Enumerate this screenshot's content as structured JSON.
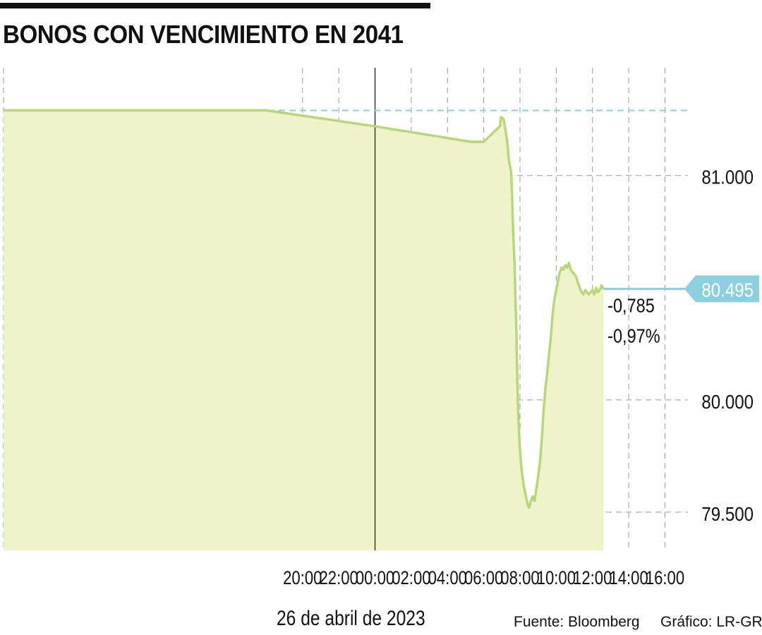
{
  "header": {
    "title": "BONOS CON VENCIMIENTO EN 2041"
  },
  "footer": {
    "date": "26 de abril de 2023",
    "source": "Fuente: Bloomberg",
    "credit": "Gráfico: LR-GR"
  },
  "colors": {
    "line": "#b9d67a",
    "fill": "#eef3c9",
    "reference": "#8ccfe0",
    "last_value_tag": "#8ccfe0",
    "grid": "#9a9a9a",
    "text": "#111111"
  },
  "chart_data": {
    "type": "area",
    "title": "BONOS CON VENCIMIENTO EN 2041",
    "xlabel": "26 de abril de 2023",
    "ylabel": "",
    "x_unit": "hours relative to 00:00 on 26 April 2023 (negative = previous evening)",
    "xlim": [
      -20.5,
      17.5
    ],
    "ylim": [
      79.33,
      81.48
    ],
    "grid": true,
    "x_ticks": [
      {
        "value": -4,
        "label": "20:00"
      },
      {
        "value": -2,
        "label": "22:00"
      },
      {
        "value": 0,
        "label": "00:00"
      },
      {
        "value": 2,
        "label": "02:00"
      },
      {
        "value": 4,
        "label": "04:00"
      },
      {
        "value": 6,
        "label": "06:00"
      },
      {
        "value": 8,
        "label": "08:00"
      },
      {
        "value": 10,
        "label": "10:00"
      },
      {
        "value": 12,
        "label": "12:00"
      },
      {
        "value": 14,
        "label": "14:00"
      },
      {
        "value": 16,
        "label": "16:00"
      }
    ],
    "y_ticks": [
      {
        "value": 81.0,
        "label": "81.000"
      },
      {
        "value": 80.0,
        "label": "80.000"
      },
      {
        "value": 79.5,
        "label": "79.500"
      }
    ],
    "reference_line": {
      "value": 81.29
    },
    "day_divider": {
      "x": 0
    },
    "last_value": {
      "value": 80.495,
      "label": "80.495"
    },
    "annotations": [
      {
        "text": "-0,785"
      },
      {
        "text": "-0,97%"
      }
    ],
    "series": [
      {
        "x": [
          -6,
          -0.1,
          5.3,
          6.0,
          6.9,
          6.95,
          7.1,
          7.2,
          7.3,
          7.35,
          7.4,
          7.5,
          7.55,
          7.6,
          7.7,
          7.75,
          7.8,
          7.85,
          7.9,
          7.95,
          8.0,
          8.05,
          8.1,
          8.2,
          8.3,
          8.4,
          8.5,
          8.6,
          8.7,
          8.8,
          8.9,
          9.0,
          9.1,
          9.2,
          9.3,
          9.4,
          9.5,
          9.6,
          9.7,
          9.8,
          9.9,
          10.0,
          10.1,
          10.2,
          10.3,
          10.4,
          10.5,
          10.6,
          10.7,
          10.8,
          10.9,
          11.0,
          11.1,
          11.2,
          11.3,
          11.4,
          11.5,
          11.6,
          11.7,
          11.8,
          11.9,
          12.0,
          12.1,
          12.2,
          12.3,
          12.4,
          12.5,
          12.6
        ],
        "y": [
          81.29,
          81.22,
          81.15,
          81.15,
          81.22,
          81.26,
          81.25,
          81.2,
          81.15,
          81.1,
          81.06,
          81.02,
          80.95,
          80.8,
          80.6,
          80.45,
          80.3,
          80.1,
          79.95,
          79.85,
          79.78,
          79.72,
          79.68,
          79.62,
          79.58,
          79.54,
          79.52,
          79.55,
          79.57,
          79.55,
          79.6,
          79.66,
          79.72,
          79.82,
          79.95,
          80.05,
          80.12,
          80.2,
          80.28,
          80.38,
          80.45,
          80.49,
          80.53,
          80.57,
          80.59,
          80.58,
          80.6,
          80.59,
          80.61,
          80.58,
          80.57,
          80.56,
          80.55,
          80.52,
          80.5,
          80.48,
          80.47,
          80.49,
          80.48,
          80.47,
          80.48,
          80.49,
          80.47,
          80.5,
          80.48,
          80.49,
          80.51,
          80.495
        ]
      }
    ]
  }
}
